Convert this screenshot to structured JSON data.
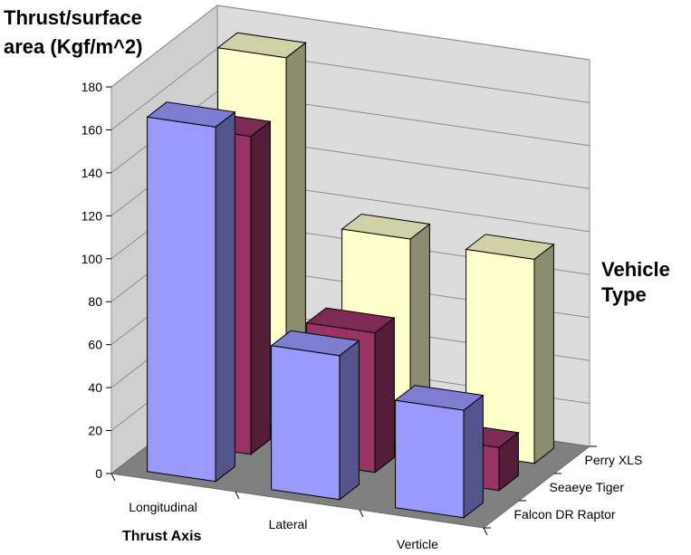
{
  "chart_data": {
    "type": "bar",
    "subtype": "3d-column",
    "ylabel_lines": [
      "Thrust/surface",
      "area (Kgf/m^2)"
    ],
    "xlabel": "Thrust Axis",
    "zlabel_lines": [
      "Vehicle",
      "Type"
    ],
    "categories": [
      "Longitudinal",
      "Lateral",
      "Verticle"
    ],
    "series": [
      {
        "name": "Falcon DR  Raptor",
        "color": "#9999ff",
        "values": [
          165,
          67,
          50
        ]
      },
      {
        "name": "Seaeye Tiger",
        "color": "#993366",
        "values": [
          148,
          65,
          20
        ]
      },
      {
        "name": "Perry XLS",
        "color": "#ffffcc",
        "values": [
          172,
          96,
          95
        ]
      }
    ],
    "ylim": [
      0,
      180
    ],
    "yticks": [
      "0",
      "20",
      "40",
      "60",
      "80",
      "100",
      "120",
      "140",
      "160",
      "180"
    ],
    "grid": true
  }
}
